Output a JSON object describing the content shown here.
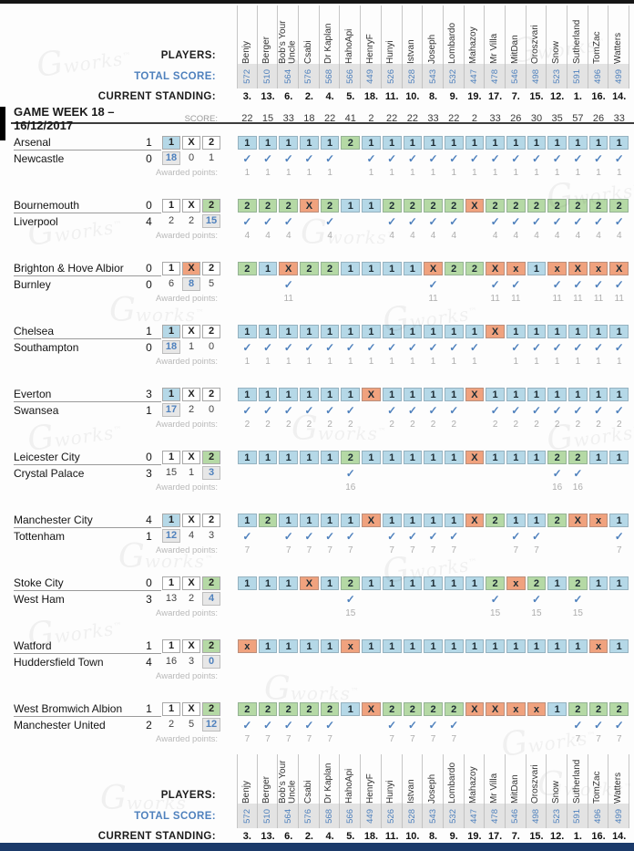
{
  "labels": {
    "players": "PLAYERS:",
    "total_score": "TOTAL SCORE:",
    "standing": "CURRENT STANDING:",
    "week_title": "GAME WEEK 18 – 16/12/2017",
    "score": "SCORE:",
    "awarded": "Awarded points:"
  },
  "watermark": {
    "g": "G",
    "text": "works",
    "tm": "™"
  },
  "colors": {
    "home_win": "#b5d8e7",
    "draw": "#f0a27e",
    "away_win": "#b5d9a5",
    "accent_blue": "#4f81bd",
    "muted_gray": "#b9b9b9",
    "bottom_bar": "#1b3a6a"
  },
  "outcomes": [
    "1",
    "X",
    "2"
  ],
  "players": [
    {
      "name": "Benjy",
      "total": "572",
      "standing": "3.",
      "week": "22"
    },
    {
      "name": "Berger",
      "total": "510",
      "standing": "13.",
      "week": "15"
    },
    {
      "name": "Bob's Your Uncle",
      "total": "564",
      "standing": "6.",
      "week": "33"
    },
    {
      "name": "Csabi",
      "total": "576",
      "standing": "2.",
      "week": "18"
    },
    {
      "name": "Dr Kaplan",
      "total": "568",
      "standing": "4.",
      "week": "22"
    },
    {
      "name": "HahoApi",
      "total": "566",
      "standing": "5.",
      "week": "41"
    },
    {
      "name": "HenryF",
      "total": "449",
      "standing": "18.",
      "week": "2"
    },
    {
      "name": "Hunyi",
      "total": "526",
      "standing": "11.",
      "week": "22"
    },
    {
      "name": "Istvan",
      "total": "528",
      "standing": "10.",
      "week": "22"
    },
    {
      "name": "Joseph",
      "total": "543",
      "standing": "8.",
      "week": "33"
    },
    {
      "name": "Lombardo",
      "total": "532",
      "standing": "9.",
      "week": "22"
    },
    {
      "name": "Mahazoy",
      "total": "447",
      "standing": "19.",
      "week": "2"
    },
    {
      "name": "Mr Villa",
      "total": "478",
      "standing": "17.",
      "week": "33"
    },
    {
      "name": "MitDan",
      "total": "546",
      "standing": "7.",
      "week": "26"
    },
    {
      "name": "Oroszvari",
      "total": "498",
      "standing": "15.",
      "week": "30"
    },
    {
      "name": "Snow",
      "total": "523",
      "standing": "12.",
      "week": "35"
    },
    {
      "name": "Sutherland",
      "total": "591",
      "standing": "1.",
      "week": "57"
    },
    {
      "name": "TomZac",
      "total": "496",
      "standing": "16.",
      "week": "26"
    },
    {
      "name": "Watters",
      "total": "499",
      "standing": "14.",
      "week": "33"
    }
  ],
  "matches": [
    {
      "home": "Arsenal",
      "home_score": "1",
      "away": "Newcastle",
      "away_score": "0",
      "result": "1",
      "counts": [
        "18",
        "0",
        "1"
      ],
      "points": "1",
      "predictions": [
        "1",
        "1",
        "1",
        "1",
        "1",
        "2",
        "1",
        "1",
        "1",
        "1",
        "1",
        "1",
        "1",
        "1",
        "1",
        "1",
        "1",
        "1",
        "1"
      ]
    },
    {
      "home": "Bournemouth",
      "home_score": "0",
      "away": "Liverpool",
      "away_score": "4",
      "result": "2",
      "counts": [
        "2",
        "2",
        "15"
      ],
      "points": "4",
      "predictions": [
        "2",
        "2",
        "2",
        "X",
        "2",
        "1",
        "1",
        "2",
        "2",
        "2",
        "2",
        "X",
        "2",
        "2",
        "2",
        "2",
        "2",
        "2",
        "2"
      ]
    },
    {
      "home": "Brighton & Hove Albior",
      "home_score": "0",
      "away": "Burnley",
      "away_score": "0",
      "result": "X",
      "counts": [
        "6",
        "8",
        "5"
      ],
      "points": "11",
      "predictions": [
        "2",
        "1",
        "X",
        "2",
        "2",
        "1",
        "1",
        "1",
        "1",
        "X",
        "2",
        "2",
        "X",
        "x",
        "1",
        "x",
        "X",
        "x",
        "X"
      ]
    },
    {
      "home": "Chelsea",
      "home_score": "1",
      "away": "Southampton",
      "away_score": "0",
      "result": "1",
      "counts": [
        "18",
        "1",
        "0"
      ],
      "points": "1",
      "predictions": [
        "1",
        "1",
        "1",
        "1",
        "1",
        "1",
        "1",
        "1",
        "1",
        "1",
        "1",
        "1",
        "X",
        "1",
        "1",
        "1",
        "1",
        "1",
        "1"
      ]
    },
    {
      "home": "Everton",
      "home_score": "3",
      "away": "Swansea",
      "away_score": "1",
      "result": "1",
      "counts": [
        "17",
        "2",
        "0"
      ],
      "points": "2",
      "predictions": [
        "1",
        "1",
        "1",
        "1",
        "1",
        "1",
        "X",
        "1",
        "1",
        "1",
        "1",
        "X",
        "1",
        "1",
        "1",
        "1",
        "1",
        "1",
        "1"
      ]
    },
    {
      "home": "Leicester City",
      "home_score": "0",
      "away": "Crystal Palace",
      "away_score": "3",
      "result": "2",
      "counts": [
        "15",
        "1",
        "3"
      ],
      "points": "16",
      "predictions": [
        "1",
        "1",
        "1",
        "1",
        "1",
        "2",
        "1",
        "1",
        "1",
        "1",
        "1",
        "X",
        "1",
        "1",
        "1",
        "2",
        "2",
        "1",
        "1"
      ]
    },
    {
      "home": "Manchester City",
      "home_score": "4",
      "away": "Tottenham",
      "away_score": "1",
      "result": "1",
      "counts": [
        "12",
        "4",
        "3"
      ],
      "points": "7",
      "predictions": [
        "1",
        "2",
        "1",
        "1",
        "1",
        "1",
        "X",
        "1",
        "1",
        "1",
        "1",
        "X",
        "2",
        "1",
        "1",
        "2",
        "X",
        "x",
        "1"
      ]
    },
    {
      "home": "Stoke City",
      "home_score": "0",
      "away": "West Ham",
      "away_score": "3",
      "result": "2",
      "counts": [
        "13",
        "2",
        "4"
      ],
      "points": "15",
      "predictions": [
        "1",
        "1",
        "1",
        "X",
        "1",
        "2",
        "1",
        "1",
        "1",
        "1",
        "1",
        "1",
        "2",
        "x",
        "2",
        "1",
        "2",
        "1",
        "1"
      ]
    },
    {
      "home": "Watford",
      "home_score": "1",
      "away": "Huddersfield Town",
      "away_score": "4",
      "result": "2",
      "counts": [
        "16",
        "3",
        "0"
      ],
      "points": "",
      "predictions": [
        "x",
        "1",
        "1",
        "1",
        "1",
        "x",
        "1",
        "1",
        "1",
        "1",
        "1",
        "1",
        "1",
        "1",
        "1",
        "1",
        "1",
        "x",
        "1"
      ]
    },
    {
      "home": "West Bromwich Albion",
      "home_score": "1",
      "away": "Manchester United",
      "away_score": "2",
      "result": "2",
      "counts": [
        "2",
        "5",
        "12"
      ],
      "points": "7",
      "predictions": [
        "2",
        "2",
        "2",
        "2",
        "2",
        "1",
        "X",
        "2",
        "2",
        "2",
        "2",
        "X",
        "X",
        "x",
        "x",
        "1",
        "2",
        "2",
        "2"
      ]
    }
  ]
}
